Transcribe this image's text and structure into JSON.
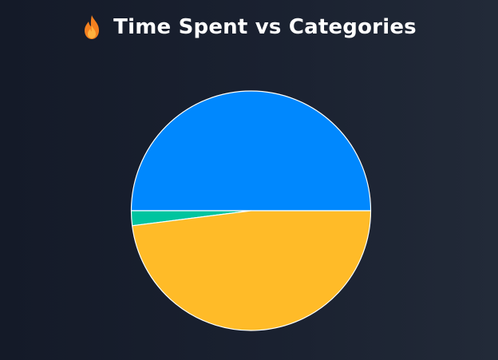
{
  "title": "Time Spent vs Categories",
  "icon": "fire-icon",
  "chart_data": {
    "type": "pie",
    "title": "Time Spent vs Categories",
    "legend": "none",
    "slices": [
      {
        "value": 50,
        "color": "#0088fe"
      },
      {
        "value": 2,
        "color": "#00c49f"
      },
      {
        "value": 48,
        "color": "#ffbb28"
      }
    ],
    "start_angle_deg": 0,
    "direction": "counterclockwise",
    "stroke_color": "#ffffff"
  }
}
